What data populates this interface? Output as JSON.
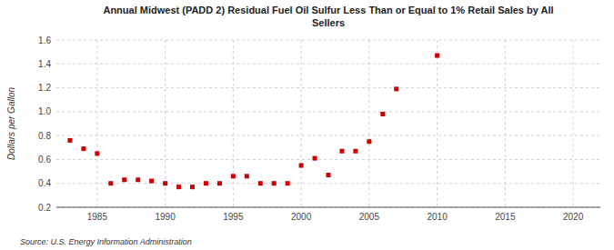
{
  "chart_data": {
    "type": "scatter",
    "title": "Annual Midwest (PADD 2) Residual Fuel Oil Sulfur Less Than or Equal to 1% Retail Sales by All\nSellers",
    "ylabel": "Dollars per Gallon",
    "source": "Source: U.S. Energy Information Administration",
    "x": [
      1983,
      1984,
      1985,
      1986,
      1987,
      1988,
      1989,
      1990,
      1991,
      1992,
      1993,
      1994,
      1995,
      1996,
      1997,
      1998,
      1999,
      2000,
      2001,
      2002,
      2003,
      2004,
      2005,
      2006,
      2007,
      2010
    ],
    "values": [
      0.76,
      0.69,
      0.65,
      0.4,
      0.43,
      0.43,
      0.42,
      0.4,
      0.37,
      0.37,
      0.4,
      0.4,
      0.46,
      0.46,
      0.4,
      0.4,
      0.4,
      0.55,
      0.61,
      0.47,
      0.67,
      0.67,
      0.75,
      0.98,
      1.19,
      1.47
    ],
    "color": "#cc0000",
    "marker": "square",
    "xlim": [
      1982,
      2022
    ],
    "ylim": [
      0.2,
      1.6
    ],
    "xticks": [
      1985,
      1990,
      1995,
      2000,
      2005,
      2010,
      2015,
      2020
    ],
    "yticks": [
      0.2,
      0.4,
      0.6,
      0.8,
      {
        "value": 1.0,
        "label": "1.0"
      },
      1.2,
      1.4,
      1.6
    ],
    "grid": true
  }
}
